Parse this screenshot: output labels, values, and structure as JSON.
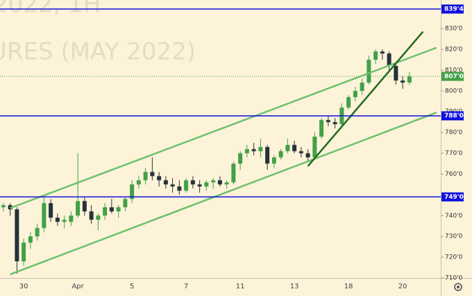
{
  "chart_data": {
    "type": "candlestick",
    "watermark": [
      "2022, 1H",
      "URES (MAY 2022)"
    ],
    "categories": [
      null,
      null,
      null,
      "30",
      null,
      null,
      null,
      null,
      null,
      null,
      null,
      "Apr",
      null,
      null,
      null,
      null,
      null,
      null,
      null,
      "5",
      null,
      null,
      null,
      null,
      null,
      null,
      null,
      "7",
      null,
      null,
      null,
      null,
      null,
      null,
      null,
      "11",
      null,
      null,
      null,
      null,
      null,
      null,
      null,
      "13",
      null,
      null,
      null,
      null,
      null,
      null,
      null,
      "18",
      null,
      null,
      null,
      null,
      null,
      null,
      null,
      "20",
      null
    ],
    "open": [
      744,
      745,
      743,
      718,
      727,
      730,
      734,
      746,
      739,
      737,
      737,
      740,
      747,
      742,
      738,
      740,
      744,
      742,
      744,
      748,
      755,
      757,
      761,
      759,
      757,
      755,
      754,
      752,
      757,
      755,
      754,
      756,
      757,
      755,
      756,
      765,
      770,
      772,
      771,
      773,
      765,
      768,
      771,
      774,
      771,
      770,
      768,
      778,
      786,
      785,
      784,
      792,
      797,
      800,
      804,
      815,
      819,
      818,
      812,
      805,
      804
    ],
    "high": [
      746,
      746,
      744,
      729,
      732,
      736,
      749,
      748,
      741,
      740,
      742,
      770,
      749,
      745,
      741,
      746,
      748,
      745,
      749,
      757,
      759,
      763,
      768,
      761,
      759,
      758,
      757,
      758,
      759,
      757,
      757,
      758,
      759,
      757,
      766,
      771,
      774,
      775,
      777,
      774,
      769,
      772,
      777,
      776,
      773,
      772,
      780,
      787,
      788,
      787,
      794,
      798,
      802,
      806,
      817,
      820,
      820,
      819,
      813,
      807,
      809
    ],
    "low": [
      742,
      740,
      712,
      716,
      724,
      728,
      732,
      737,
      735,
      734,
      735,
      739,
      740,
      736,
      733,
      738,
      741,
      739,
      742,
      746,
      753,
      755,
      757,
      754,
      753,
      751,
      750,
      751,
      753,
      751,
      752,
      753,
      754,
      753,
      755,
      762,
      768,
      769,
      768,
      762,
      763,
      767,
      770,
      770,
      768,
      766,
      767,
      777,
      783,
      782,
      783,
      791,
      795,
      798,
      803,
      813,
      815,
      810,
      803,
      801,
      803
    ],
    "close": [
      745,
      743,
      718,
      727,
      730,
      734,
      746,
      739,
      737,
      738,
      740,
      747,
      742,
      738,
      740,
      744,
      742,
      744,
      748,
      755,
      757,
      761,
      759,
      757,
      755,
      754,
      752,
      757,
      755,
      754,
      756,
      757,
      755,
      756,
      765,
      770,
      772,
      771,
      773,
      765,
      768,
      771,
      774,
      771,
      770,
      768,
      778,
      786,
      785,
      784,
      792,
      797,
      800,
      804,
      815,
      819,
      818,
      812,
      805,
      804,
      807
    ],
    "up_color": "#43a047",
    "down_color": "#263238",
    "ylim": [
      710,
      843.75
    ],
    "yticks": [
      {
        "value": 710,
        "label": "710'0"
      },
      {
        "value": 720,
        "label": "720'0"
      },
      {
        "value": 730,
        "label": "730'0"
      },
      {
        "value": 740,
        "label": "740'0"
      },
      {
        "value": 760,
        "label": "760'0"
      },
      {
        "value": 770,
        "label": "770'0"
      },
      {
        "value": 780,
        "label": "780'0"
      },
      {
        "value": 790,
        "label": "790'0"
      },
      {
        "value": 800,
        "label": "800'0"
      },
      {
        "value": 810,
        "label": "810'0"
      },
      {
        "value": 820,
        "label": "820'0"
      },
      {
        "value": 830,
        "label": "830'0"
      }
    ],
    "levels": [
      {
        "value": 839.4,
        "label": "839'4",
        "color": "#1010e0"
      },
      {
        "value": 788,
        "label": "788'0",
        "color": "#1010e0"
      },
      {
        "value": 749,
        "label": "749'0",
        "color": "#1010e0"
      }
    ],
    "last_price": {
      "value": 807,
      "label": "807'0",
      "color": "#43a047"
    },
    "trendlines": [
      {
        "points": [
          [
            1,
            743.6
          ],
          [
            64,
            820.8
          ]
        ],
        "color": "#6cc06c"
      },
      {
        "points": [
          [
            1,
            711.7
          ],
          [
            64,
            789.6
          ]
        ],
        "color": "#6cc06c"
      },
      {
        "points": [
          [
            45,
            763.8
          ],
          [
            62,
            828.5
          ]
        ],
        "color": "#1e6b1e"
      }
    ]
  }
}
